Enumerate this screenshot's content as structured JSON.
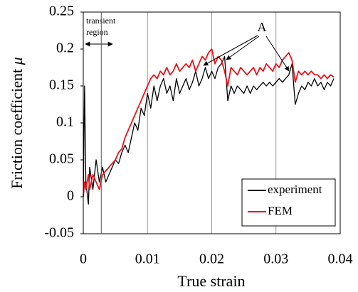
{
  "chart_data": {
    "type": "line",
    "xlabel": "True strain",
    "ylabel": "Friction coefficient",
    "ylabel_symbol": "μ",
    "x": [
      0,
      0.0002,
      0.0004,
      0.0008,
      0.001,
      0.0015,
      0.002,
      0.0025,
      0.003,
      0.0035,
      0.004,
      0.0045,
      0.005,
      0.0055,
      0.006,
      0.0065,
      0.007,
      0.0075,
      0.008,
      0.0085,
      0.009,
      0.0095,
      0.01,
      0.0105,
      0.011,
      0.0115,
      0.012,
      0.0125,
      0.013,
      0.0135,
      0.014,
      0.0145,
      0.015,
      0.0155,
      0.016,
      0.0165,
      0.017,
      0.0175,
      0.018,
      0.0185,
      0.019,
      0.0195,
      0.02,
      0.0205,
      0.021,
      0.0215,
      0.022,
      0.0225,
      0.023,
      0.0235,
      0.024,
      0.0245,
      0.025,
      0.0255,
      0.026,
      0.0265,
      0.027,
      0.0275,
      0.028,
      0.0285,
      0.029,
      0.0295,
      0.03,
      0.0305,
      0.031,
      0.0315,
      0.032,
      0.0325,
      0.033,
      0.0335,
      0.034,
      0.0345,
      0.035,
      0.0355,
      0.036,
      0.0365,
      0.037,
      0.0375,
      0.038,
      0.0385,
      0.039
    ],
    "series": [
      {
        "name": "experiment",
        "color": "#000000",
        "values": [
          0,
          0.15,
          0.02,
          -0.01,
          0.04,
          0.01,
          0.05,
          0.02,
          0.04,
          0.02,
          0.03,
          0.04,
          0.05,
          0.045,
          0.06,
          0.07,
          0.06,
          0.08,
          0.1,
          0.09,
          0.12,
          0.11,
          0.14,
          0.12,
          0.15,
          0.13,
          0.15,
          0.16,
          0.14,
          0.15,
          0.13,
          0.16,
          0.14,
          0.15,
          0.16,
          0.145,
          0.155,
          0.17,
          0.15,
          0.16,
          0.175,
          0.16,
          0.17,
          0.16,
          0.175,
          0.18,
          0.19,
          0.13,
          0.15,
          0.14,
          0.15,
          0.145,
          0.14,
          0.15,
          0.14,
          0.15,
          0.145,
          0.15,
          0.155,
          0.15,
          0.155,
          0.15,
          0.155,
          0.16,
          0.155,
          0.16,
          0.165,
          0.18,
          0.125,
          0.14,
          0.15,
          0.145,
          0.155,
          0.15,
          0.16,
          0.15,
          0.155,
          0.145,
          0.155,
          0.15,
          0.16
        ]
      },
      {
        "name": "FEM",
        "color": "#e8141c",
        "values": [
          0,
          0.02,
          0.01,
          0.03,
          0.01,
          0.03,
          0.02,
          0.01,
          0.03,
          0.035,
          0.04,
          0.045,
          0.05,
          0.06,
          0.065,
          0.08,
          0.09,
          0.1,
          0.11,
          0.12,
          0.13,
          0.14,
          0.15,
          0.16,
          0.165,
          0.16,
          0.17,
          0.165,
          0.175,
          0.165,
          0.17,
          0.18,
          0.17,
          0.175,
          0.18,
          0.175,
          0.185,
          0.17,
          0.18,
          0.19,
          0.185,
          0.195,
          0.2,
          0.18,
          0.19,
          0.185,
          0.17,
          0.15,
          0.175,
          0.17,
          0.165,
          0.175,
          0.17,
          0.165,
          0.17,
          0.175,
          0.165,
          0.175,
          0.17,
          0.18,
          0.175,
          0.17,
          0.18,
          0.175,
          0.185,
          0.19,
          0.195,
          0.185,
          0.155,
          0.17,
          0.165,
          0.17,
          0.165,
          0.17,
          0.165,
          0.165,
          0.16,
          0.165,
          0.16,
          0.165,
          0.162
        ]
      }
    ],
    "xlim": [
      0,
      0.04
    ],
    "xticks": [
      0,
      0.01,
      0.02,
      0.03,
      0.04
    ],
    "ylim": [
      -0.05,
      0.25
    ],
    "yticks": [
      -0.05,
      0,
      0.05,
      0.1,
      0.15,
      0.2,
      0.25
    ],
    "grid": "x",
    "legend": "lower right",
    "annotations": [
      {
        "text": [
          "transient",
          "region"
        ],
        "x": 0.0028
      },
      {
        "text": "A"
      }
    ]
  }
}
